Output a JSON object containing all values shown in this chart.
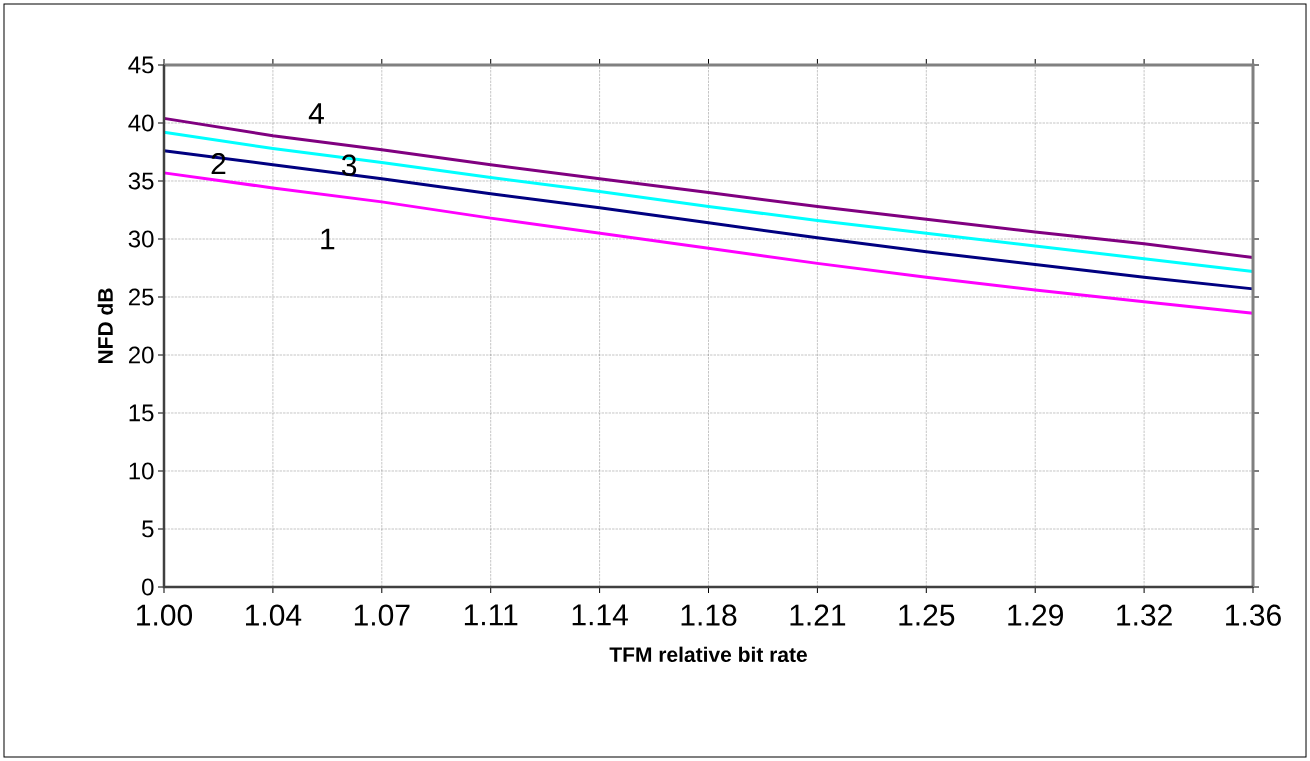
{
  "chart_data": {
    "type": "line",
    "xlabel": "TFM relative bit rate",
    "ylabel": "NFD dB",
    "x": [
      1.0,
      1.0357,
      1.0714,
      1.1071,
      1.1428,
      1.1785,
      1.2142,
      1.2499,
      1.2856,
      1.3213,
      1.357
    ],
    "xlim": [
      1.0,
      1.357
    ],
    "xticks": [
      {
        "value": 1.0,
        "label": "1.00"
      },
      {
        "value": 1.0357,
        "label": "1.04"
      },
      {
        "value": 1.0714,
        "label": "1.07"
      },
      {
        "value": 1.1071,
        "label": "1.11"
      },
      {
        "value": 1.1428,
        "label": "1.14"
      },
      {
        "value": 1.1785,
        "label": "1.18"
      },
      {
        "value": 1.2142,
        "label": "1.21"
      },
      {
        "value": 1.2499,
        "label": "1.25"
      },
      {
        "value": 1.2856,
        "label": "1.29"
      },
      {
        "value": 1.3213,
        "label": "1.32"
      },
      {
        "value": 1.357,
        "label": "1.36"
      }
    ],
    "ylim": [
      0,
      45
    ],
    "yticks": [
      0,
      5,
      10,
      15,
      20,
      25,
      30,
      35,
      40,
      45
    ],
    "grid": true,
    "legend": false,
    "marker": "none",
    "line_style": "solid",
    "series": [
      {
        "name": "1",
        "color": "#ff00ff",
        "values": [
          35.7,
          34.4,
          33.2,
          31.8,
          30.5,
          29.2,
          27.9,
          26.7,
          25.6,
          24.6,
          23.6
        ]
      },
      {
        "name": "2",
        "color": "#000080",
        "values": [
          37.6,
          36.4,
          35.2,
          33.9,
          32.7,
          31.4,
          30.1,
          28.9,
          27.8,
          26.7,
          25.7
        ]
      },
      {
        "name": "3",
        "color": "#00ffff",
        "values": [
          39.2,
          37.8,
          36.6,
          35.3,
          34.1,
          32.8,
          31.6,
          30.5,
          29.4,
          28.3,
          27.2
        ]
      },
      {
        "name": "4",
        "color": "#800080",
        "values": [
          40.4,
          38.9,
          37.7,
          36.4,
          35.2,
          34.0,
          32.8,
          31.7,
          30.6,
          29.6,
          28.4
        ]
      }
    ]
  }
}
